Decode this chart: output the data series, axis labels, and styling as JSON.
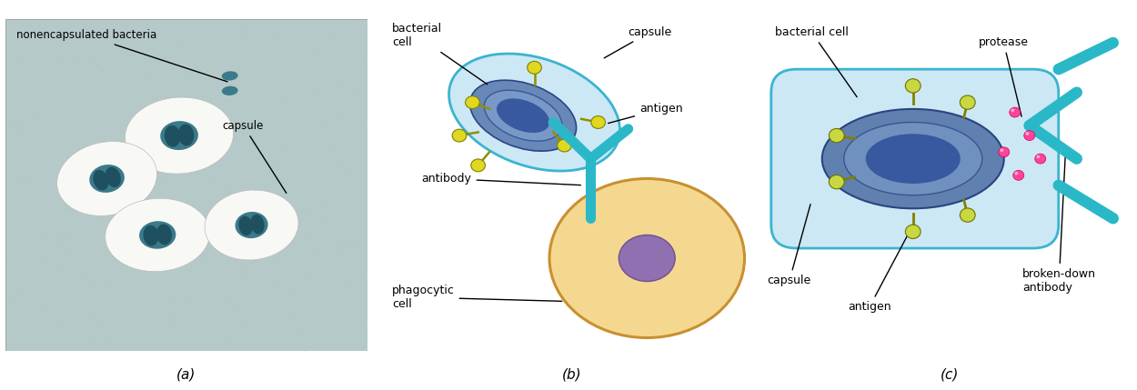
{
  "panel_a": {
    "bg_color": "#b5c9c9",
    "capsule_color": "#f8f8f5",
    "capsule_edge": "#bbbbbb",
    "cell_color": "#3a7a8a",
    "cell_inner": "#1e5060",
    "label_nonenc": "nonencapsulated bacteria",
    "label_capsule": "capsule",
    "label_panel": "(a)"
  },
  "panel_b": {
    "bg_color": "#ffffff",
    "capsule_fill": "#cce8f5",
    "capsule_edge": "#3ab4d0",
    "cell_outer_fill": "#6888b8",
    "cell_inner_fill": "#3858a0",
    "antigen_color": "#e0d820",
    "antigen_stem": "#909000",
    "antibody_color": "#2ab8c8",
    "phago_fill": "#f5d890",
    "phago_edge": "#c89030",
    "nucleus_fill": "#9070b0",
    "nucleus_edge": "#705090",
    "label_bact": "bacterial\ncell",
    "label_capsule": "capsule",
    "label_antigen": "antigen",
    "label_antibody": "antibody",
    "label_phago": "phagocytic\ncell",
    "label_panel": "(b)"
  },
  "panel_c": {
    "bg_color": "#ffffff",
    "capsule_fill": "#cce8f5",
    "capsule_edge": "#3ab4d0",
    "cell_outer_fill": "#6080b0",
    "cell_mid_fill": "#7090c0",
    "cell_inner_fill": "#3858a0",
    "antigen_color": "#c8d840",
    "antigen_stem": "#808000",
    "antibody_color": "#2ab8c8",
    "protease_color": "#ff4499",
    "label_bact": "bacterial cell",
    "label_capsule": "capsule",
    "label_antigen": "antigen",
    "label_protease": "protease",
    "label_broken": "broken-down\nantibody",
    "label_panel": "(c)"
  }
}
